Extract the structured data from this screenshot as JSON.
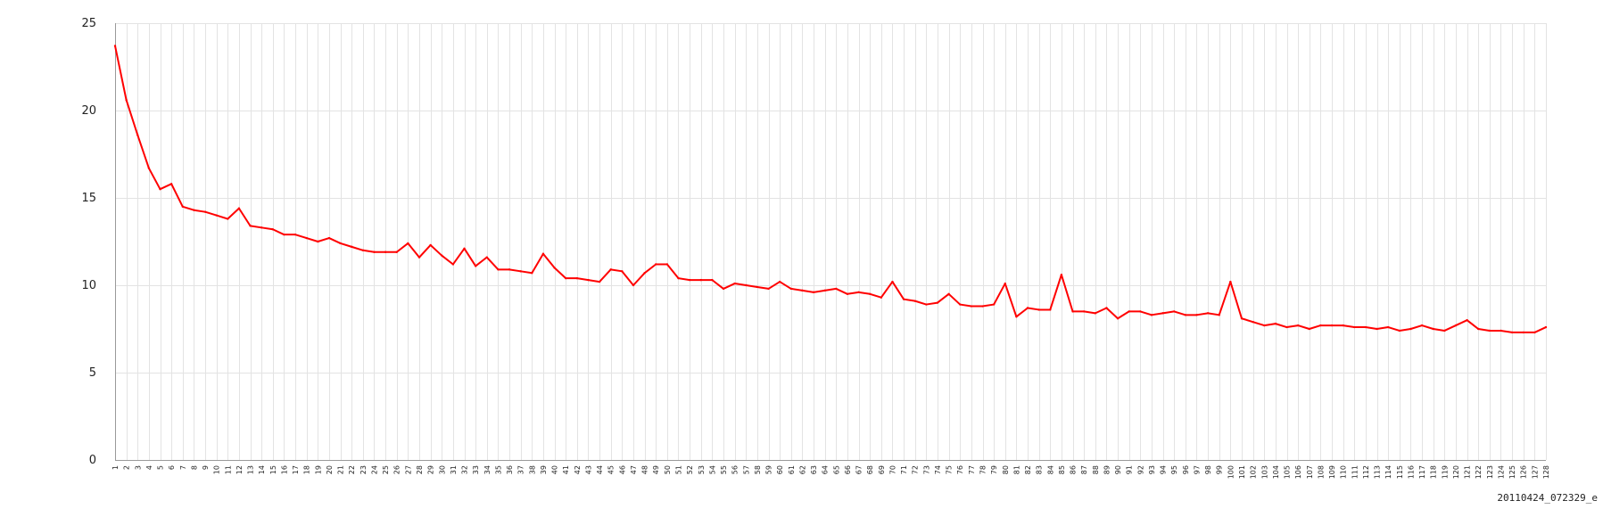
{
  "chart_data": {
    "type": "line",
    "title": "",
    "xlabel": "",
    "ylabel": "",
    "ylim": [
      0,
      25
    ],
    "yticks": [
      0,
      5,
      10,
      15,
      20,
      25
    ],
    "grid": true,
    "x": [
      1,
      2,
      3,
      4,
      5,
      6,
      7,
      8,
      9,
      10,
      11,
      12,
      13,
      14,
      15,
      16,
      17,
      18,
      19,
      20,
      21,
      22,
      23,
      24,
      25,
      26,
      27,
      28,
      29,
      30,
      31,
      32,
      33,
      34,
      35,
      36,
      37,
      38,
      39,
      40,
      41,
      42,
      43,
      44,
      45,
      46,
      47,
      48,
      49,
      50,
      51,
      52,
      53,
      54,
      55,
      56,
      57,
      58,
      59,
      60,
      61,
      62,
      63,
      64,
      65,
      66,
      67,
      68,
      69,
      70,
      71,
      72,
      73,
      74,
      75,
      76,
      77,
      78,
      79,
      80,
      81,
      82,
      83,
      84,
      85,
      86,
      87,
      88,
      89,
      90,
      91,
      92,
      93,
      94,
      95,
      96,
      97,
      98,
      99,
      100,
      101,
      102,
      103,
      104,
      105,
      106,
      107,
      108,
      109,
      110,
      111,
      112,
      113,
      114,
      115,
      116,
      117,
      118,
      119,
      120,
      121,
      122,
      123,
      124,
      125,
      126,
      127,
      128
    ],
    "series": [
      {
        "color": "#ff0000",
        "values": [
          23.7,
          20.6,
          18.6,
          16.7,
          15.5,
          15.8,
          14.5,
          14.3,
          14.2,
          14.0,
          13.8,
          14.4,
          13.4,
          13.3,
          13.2,
          12.9,
          12.9,
          12.7,
          12.5,
          12.7,
          12.4,
          12.2,
          12.0,
          11.9,
          11.9,
          11.9,
          12.4,
          11.6,
          12.3,
          11.7,
          11.2,
          12.1,
          11.1,
          11.6,
          10.9,
          10.9,
          10.8,
          10.7,
          11.8,
          11.0,
          10.4,
          10.4,
          10.3,
          10.2,
          10.9,
          10.8,
          10.0,
          10.7,
          11.2,
          11.2,
          10.4,
          10.3,
          10.3,
          10.3,
          9.8,
          10.1,
          10.0,
          9.9,
          9.8,
          10.2,
          9.8,
          9.7,
          9.6,
          9.7,
          9.8,
          9.5,
          9.6,
          9.5,
          9.3,
          10.2,
          9.2,
          9.1,
          8.9,
          9.0,
          9.5,
          8.9,
          8.8,
          8.8,
          8.9,
          10.1,
          8.2,
          8.7,
          8.6,
          8.6,
          10.6,
          8.5,
          8.5,
          8.4,
          8.7,
          8.1,
          8.5,
          8.5,
          8.3,
          8.4,
          8.5,
          8.3,
          8.3,
          8.4,
          8.3,
          10.2,
          8.1,
          7.9,
          7.7,
          7.8,
          7.6,
          7.7,
          7.5,
          7.7,
          7.7,
          7.7,
          7.6,
          7.6,
          7.5,
          7.6,
          7.4,
          7.5,
          7.7,
          7.5,
          7.4,
          7.7,
          8.0,
          7.5,
          7.4,
          7.4,
          7.3,
          7.3,
          7.3,
          7.6
        ]
      }
    ]
  },
  "caption": "20110424_072329_e"
}
